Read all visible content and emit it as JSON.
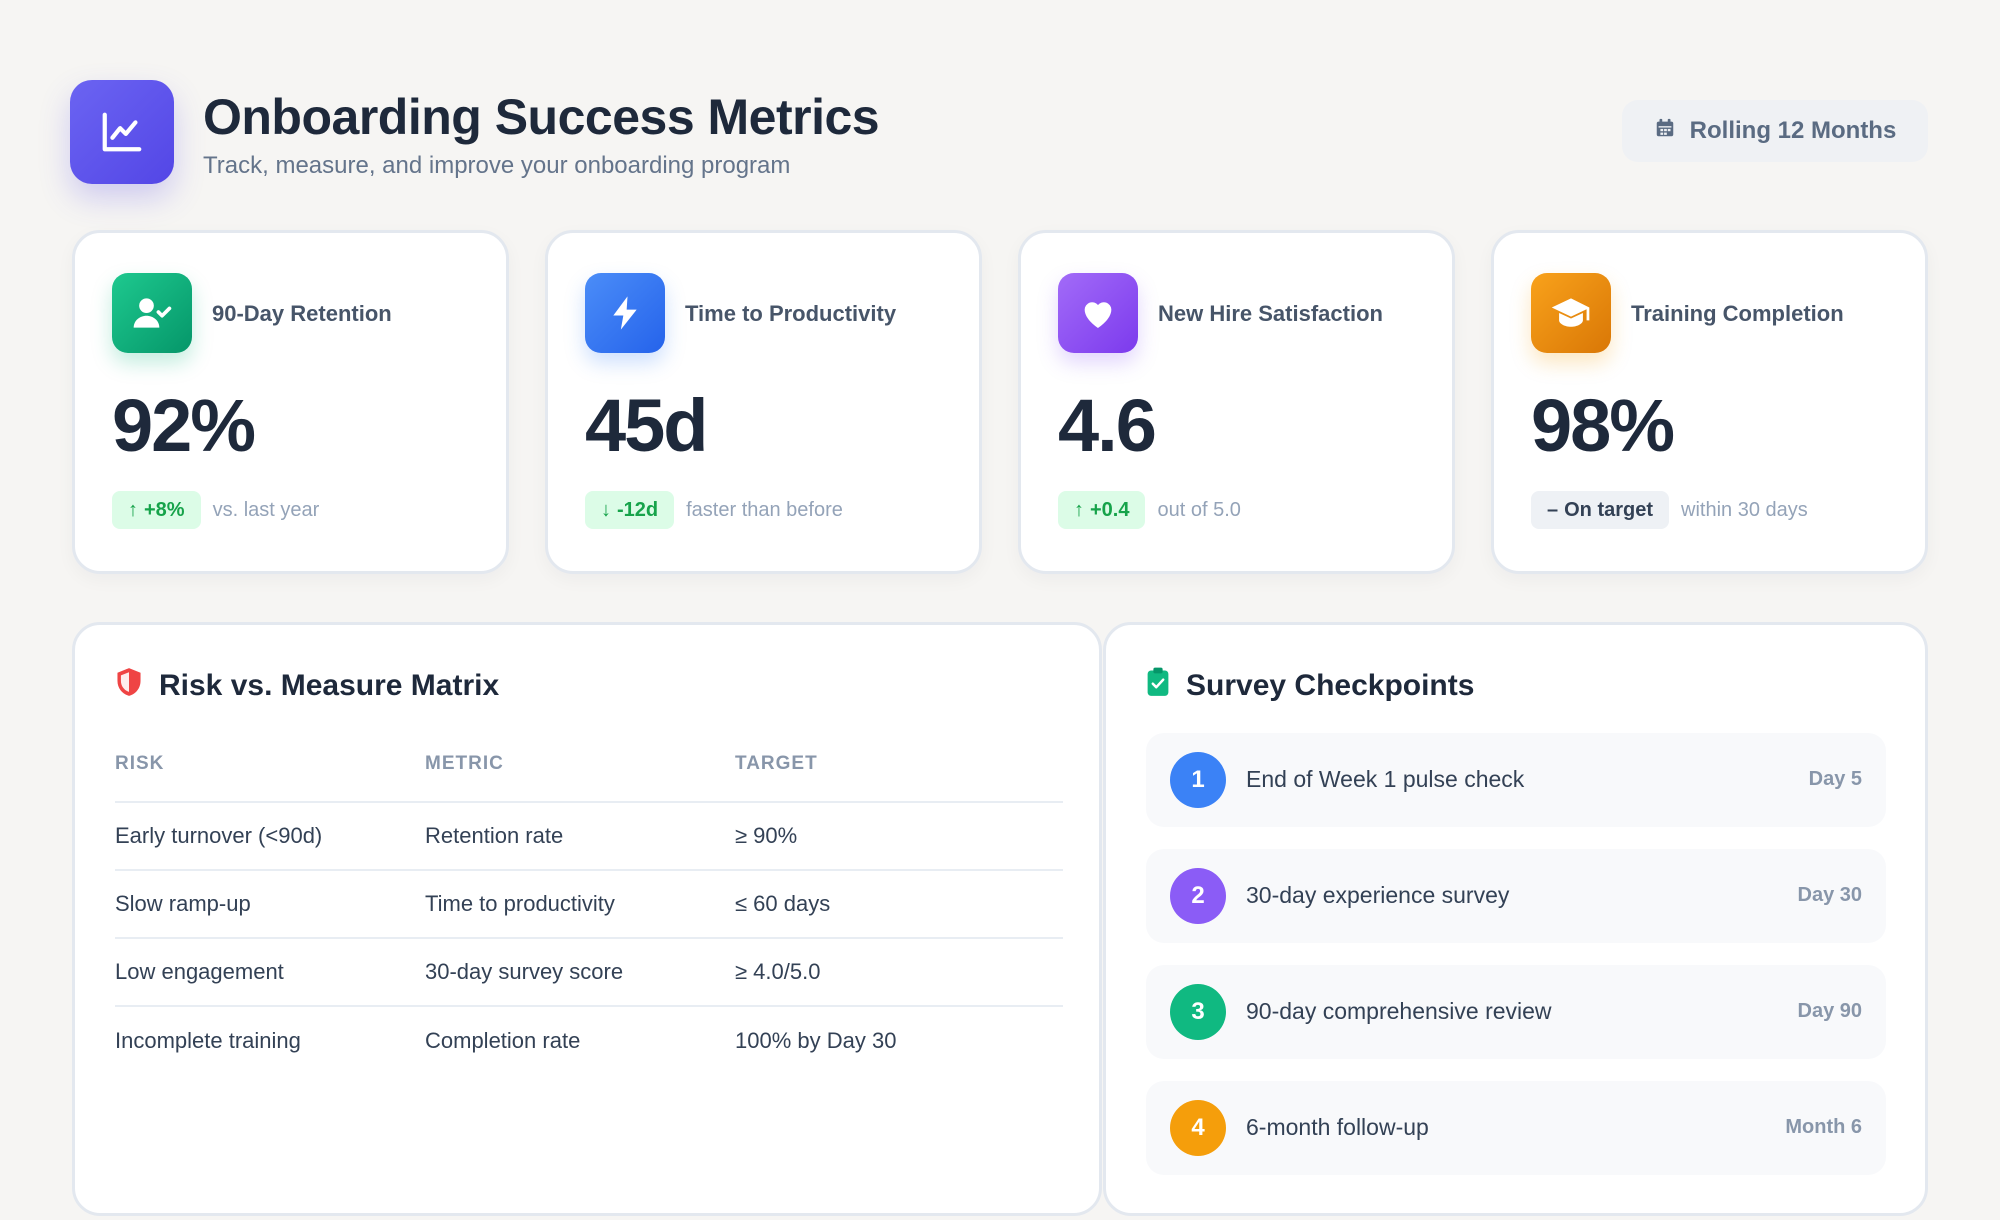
{
  "header": {
    "title": "Onboarding Success Metrics",
    "subtitle": "Track, measure, and improve your onboarding program",
    "period_label": "Rolling 12 Months",
    "logo_icon": "line-chart-icon",
    "period_icon": "calendar-icon"
  },
  "kpis": [
    {
      "label": "90-Day Retention",
      "value": "92%",
      "change": "+8%",
      "change_direction": "up",
      "note": "vs. last year",
      "icon": "user-check-icon",
      "color": "#10b981"
    },
    {
      "label": "Time to Productivity",
      "value": "45d",
      "change": "-12d",
      "change_direction": "down",
      "note": "faster than before",
      "icon": "lightning-icon",
      "color": "#3b82f6"
    },
    {
      "label": "New Hire Satisfaction",
      "value": "4.6",
      "change": "+0.4",
      "change_direction": "up",
      "note": "out of 5.0",
      "icon": "heart-icon",
      "color": "#8b5cf6"
    },
    {
      "label": "Training Completion",
      "value": "98%",
      "change": "On target",
      "change_direction": "flat",
      "note": "within 30 days",
      "icon": "graduation-cap-icon",
      "color": "#f59e0b"
    }
  ],
  "risk_matrix": {
    "title": "Risk vs. Measure Matrix",
    "icon": "shield-icon",
    "columns": [
      "RISK",
      "METRIC",
      "TARGET"
    ],
    "rows": [
      [
        "Early turnover (<90d)",
        "Retention rate",
        "≥ 90%"
      ],
      [
        "Slow ramp-up",
        "Time to productivity",
        "≤ 60 days"
      ],
      [
        "Low engagement",
        "30-day survey score",
        "≥ 4.0/5.0"
      ],
      [
        "Incomplete training",
        "Completion rate",
        "100% by Day 30"
      ]
    ]
  },
  "survey": {
    "title": "Survey Checkpoints",
    "icon": "clipboard-check-icon",
    "items": [
      {
        "num": "1",
        "label": "End of Week 1 pulse check",
        "when": "Day 5",
        "color": "#3b82f6"
      },
      {
        "num": "2",
        "label": "30-day experience survey",
        "when": "Day 30",
        "color": "#8b5cf6"
      },
      {
        "num": "3",
        "label": "90-day comprehensive review",
        "when": "Day 90",
        "color": "#10b981"
      },
      {
        "num": "4",
        "label": "6-month follow-up",
        "when": "Month 6",
        "color": "#f59e0b"
      }
    ]
  }
}
